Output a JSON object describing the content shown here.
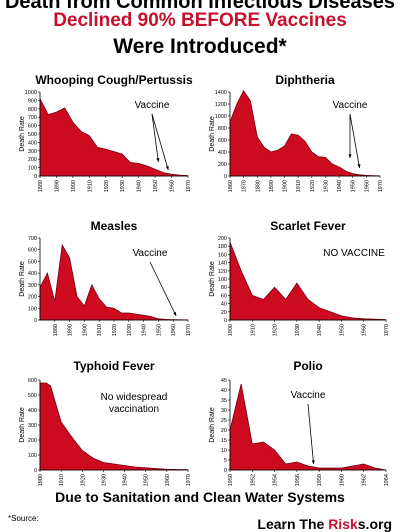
{
  "header": {
    "line1": "Death from Common Infectious Diseases",
    "line2": "Declined 90% BEFORE Vaccines",
    "line3": "Were Introduced*"
  },
  "footer": "Due to Sanitation and Clean Water Systems",
  "source_label": "*Source:",
  "brand": {
    "part1": "Learn The ",
    "part2": "Risk",
    "part3": "s.org"
  },
  "colors": {
    "fill": "#cc0a20",
    "accent": "#c8102e"
  },
  "chart_data": [
    {
      "type": "area",
      "title": "Whooping Cough/Pertussis",
      "ylabel": "Death Rate",
      "ylim": [
        0,
        1000
      ],
      "yticks": [
        0,
        100,
        200,
        300,
        400,
        500,
        600,
        700,
        800,
        900,
        1000
      ],
      "xlim": [
        1880,
        1970
      ],
      "xticks": [
        1880,
        1890,
        1900,
        1910,
        1920,
        1930,
        1940,
        1950,
        1960,
        1970
      ],
      "x": [
        1880,
        1885,
        1890,
        1895,
        1900,
        1905,
        1910,
        1915,
        1920,
        1925,
        1930,
        1935,
        1940,
        1945,
        1950,
        1955,
        1960,
        1965,
        1970
      ],
      "values": [
        920,
        730,
        760,
        810,
        640,
        530,
        480,
        340,
        320,
        290,
        260,
        160,
        150,
        120,
        80,
        40,
        20,
        10,
        5
      ],
      "annotation": "Vaccine"
    },
    {
      "type": "area",
      "title": "Diphtheria",
      "ylabel": "Death Rate",
      "ylim": [
        0,
        1400
      ],
      "yticks": [
        0,
        200,
        400,
        600,
        800,
        1000,
        1200,
        1400
      ],
      "xlim": [
        1860,
        1970
      ],
      "xticks": [
        1860,
        1870,
        1880,
        1890,
        1900,
        1910,
        1920,
        1930,
        1940,
        1950,
        1960,
        1970
      ],
      "x": [
        1860,
        1865,
        1870,
        1875,
        1880,
        1885,
        1890,
        1895,
        1900,
        1905,
        1910,
        1915,
        1920,
        1925,
        1930,
        1935,
        1940,
        1945,
        1950,
        1955,
        1960,
        1965,
        1970
      ],
      "values": [
        900,
        1200,
        1420,
        1250,
        650,
        480,
        400,
        430,
        500,
        700,
        680,
        580,
        400,
        320,
        310,
        200,
        150,
        80,
        40,
        20,
        10,
        5,
        2
      ],
      "annotation": "Vaccine"
    },
    {
      "type": "area",
      "title": "Measles",
      "ylabel": "Death Rate",
      "ylim": [
        0,
        700
      ],
      "yticks": [
        0,
        100,
        200,
        300,
        400,
        500,
        600,
        700
      ],
      "xlim": [
        1870,
        1970
      ],
      "xticks": [
        1880,
        1890,
        1900,
        1910,
        1920,
        1930,
        1940,
        1950,
        1960,
        1970
      ],
      "x": [
        1870,
        1875,
        1880,
        1885,
        1890,
        1895,
        1900,
        1905,
        1910,
        1915,
        1920,
        1925,
        1930,
        1935,
        1940,
        1945,
        1950,
        1955,
        1960,
        1965,
        1970
      ],
      "values": [
        280,
        400,
        160,
        640,
        530,
        200,
        120,
        300,
        180,
        110,
        100,
        60,
        60,
        50,
        40,
        30,
        10,
        5,
        3,
        2,
        1
      ],
      "annotation": "Vaccine"
    },
    {
      "type": "area",
      "title": "Scarlet Fever",
      "ylabel": "Death Rate",
      "ylim": [
        0,
        200
      ],
      "yticks": [
        0,
        20,
        40,
        60,
        80,
        100,
        120,
        140,
        160,
        180,
        200
      ],
      "xlim": [
        1900,
        1970
      ],
      "xticks": [
        1900,
        1910,
        1920,
        1930,
        1940,
        1950,
        1960,
        1970
      ],
      "x": [
        1900,
        1905,
        1910,
        1915,
        1920,
        1925,
        1930,
        1935,
        1940,
        1945,
        1950,
        1955,
        1960,
        1965,
        1970
      ],
      "values": [
        190,
        120,
        60,
        50,
        80,
        50,
        90,
        50,
        30,
        20,
        10,
        5,
        3,
        2,
        1
      ],
      "annotation": "NO VACCINE"
    },
    {
      "type": "area",
      "title": "Typhoid Fever",
      "ylabel": "Death Rate",
      "ylim": [
        0,
        600
      ],
      "yticks": [
        0,
        100,
        200,
        300,
        400,
        500,
        600
      ],
      "xlim": [
        1900,
        1970
      ],
      "xticks": [
        1900,
        1910,
        1920,
        1930,
        1940,
        1950,
        1960,
        1970
      ],
      "x": [
        1900,
        1903,
        1905,
        1910,
        1915,
        1920,
        1925,
        1930,
        1935,
        1940,
        1945,
        1950,
        1955,
        1960,
        1965,
        1970
      ],
      "values": [
        580,
        580,
        560,
        320,
        220,
        130,
        80,
        50,
        40,
        30,
        20,
        15,
        10,
        5,
        3,
        2
      ],
      "annotation": "No widespread vaccination"
    },
    {
      "type": "area",
      "title": "Polio",
      "ylabel": "Death Rate",
      "ylim": [
        0,
        45
      ],
      "yticks": [
        0,
        5,
        10,
        15,
        20,
        25,
        30,
        35,
        40,
        45
      ],
      "xlim": [
        1950,
        1964
      ],
      "xticks": [
        1950,
        1952,
        1954,
        1956,
        1958,
        1960,
        1962,
        1964
      ],
      "x": [
        1950,
        1951,
        1952,
        1953,
        1954,
        1955,
        1956,
        1957,
        1958,
        1959,
        1960,
        1961,
        1962,
        1963,
        1964
      ],
      "values": [
        20,
        43,
        13,
        14,
        10,
        3,
        4,
        2,
        1,
        1,
        1,
        2,
        3,
        1,
        0
      ],
      "annotation": "Vaccine"
    }
  ]
}
